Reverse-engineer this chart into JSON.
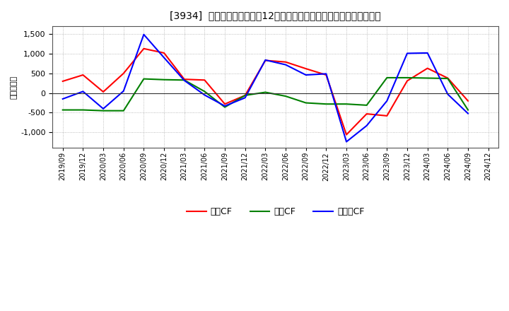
{
  "title": "[3934]  キャッシュフローの12か月移動合計の対前年同期増減額の推移",
  "ylabel": "（百万円）",
  "background_color": "#ffffff",
  "grid_color": "#aaaaaa",
  "xlabels": [
    "2019/09",
    "2019/12",
    "2020/03",
    "2020/06",
    "2020/09",
    "2020/12",
    "2021/03",
    "2021/06",
    "2021/09",
    "2021/12",
    "2022/03",
    "2022/06",
    "2022/09",
    "2022/12",
    "2023/03",
    "2023/06",
    "2023/09",
    "2023/12",
    "2024/03",
    "2024/06",
    "2024/09",
    "2024/12"
  ],
  "operating_cf": [
    300,
    460,
    30,
    500,
    1130,
    1020,
    350,
    330,
    -280,
    -60,
    830,
    790,
    620,
    460,
    -1060,
    -530,
    -580,
    310,
    630,
    380,
    -200,
    null
  ],
  "investing_cf": [
    -430,
    -430,
    -450,
    -450,
    360,
    340,
    330,
    40,
    -360,
    -60,
    20,
    -80,
    -250,
    -280,
    -280,
    -310,
    390,
    390,
    380,
    370,
    -430,
    null
  ],
  "free_cf": [
    -150,
    40,
    -400,
    50,
    1490,
    900,
    320,
    -50,
    -330,
    -120,
    840,
    720,
    460,
    490,
    -1240,
    -830,
    -200,
    1010,
    1020,
    -30,
    -520,
    null
  ],
  "operating_color": "#ff0000",
  "investing_color": "#008000",
  "free_color": "#0000ff",
  "ylim": [
    -1400,
    1700
  ],
  "yticks": [
    -1000,
    -500,
    0,
    500,
    1000,
    1500
  ],
  "legend_labels": [
    "営業CF",
    "投資CF",
    "フリーCF"
  ]
}
